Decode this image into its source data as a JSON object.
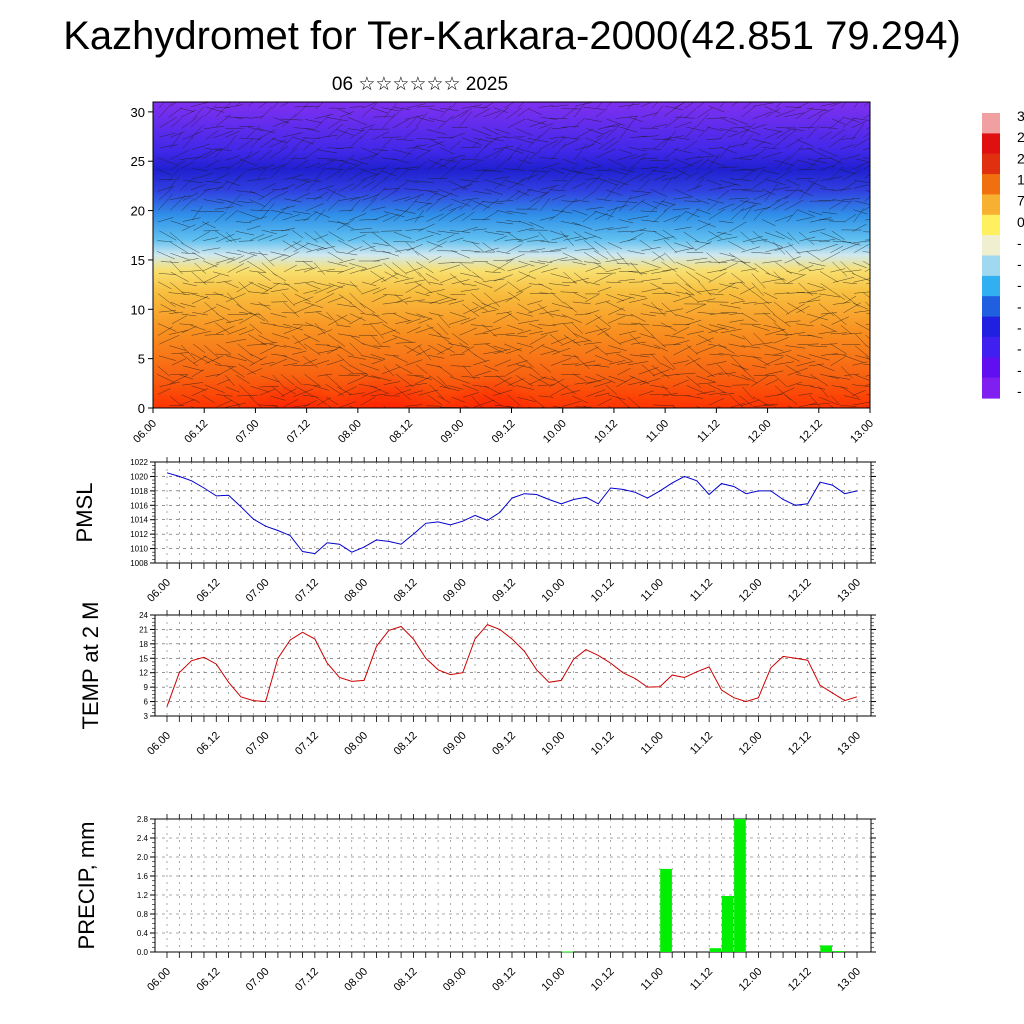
{
  "header": {
    "title": "Kazhydromet for Ter-Karkara-2000(42.851 79.294)",
    "subtitle": "06 ☆☆☆☆☆☆ 2025"
  },
  "time_labels": [
    "06.00",
    "06.12",
    "07.00",
    "07.12",
    "08.00",
    "08.12",
    "09.00",
    "09.12",
    "10.00",
    "10.12",
    "11.00",
    "11.12",
    "12.00",
    "12.12",
    "13.00"
  ],
  "colorbar": {
    "labels": [
      "3",
      "2",
      "2",
      "1",
      "7",
      "0",
      "-",
      "-",
      "-",
      "-",
      "-",
      "-",
      "-",
      "-"
    ],
    "colors": [
      "#f0a0a0",
      "#e01010",
      "#e03010",
      "#f07010",
      "#f8b030",
      "#fff060",
      "#f0f0d0",
      "#a0d8f0",
      "#30b0f0",
      "#2060e0",
      "#2020e0",
      "#4020f0",
      "#6010f0",
      "#8020f0"
    ]
  },
  "chart_data": [
    {
      "type": "heatmap",
      "title": "",
      "x_ticks": [
        "06.00",
        "06.12",
        "07.00",
        "07.12",
        "08.00",
        "08.12",
        "09.00",
        "09.12",
        "10.00",
        "10.12",
        "11.00",
        "11.12",
        "12.00",
        "12.12",
        "13.00"
      ],
      "y_ticks": [
        0,
        5,
        10,
        15,
        20,
        25,
        30
      ],
      "ylim": [
        0,
        31
      ],
      "note_overlay": "wind barbs"
    },
    {
      "type": "line",
      "ylabel": "PMSL",
      "ylim": [
        1008,
        1022
      ],
      "y_ticks": [
        1008,
        1010,
        1012,
        1014,
        1016,
        1018,
        1020,
        1022
      ],
      "x_ticks": [
        "06.00",
        "06.12",
        "07.00",
        "07.12",
        "08.00",
        "08.12",
        "09.00",
        "09.12",
        "10.00",
        "10.12",
        "11.00",
        "11.12",
        "12.00",
        "12.12",
        "13.00"
      ],
      "color": "#0000cc",
      "values": [
        1020.5,
        1020.0,
        1019.4,
        1018.4,
        1017.3,
        1017.4,
        1015.8,
        1014.1,
        1013.1,
        1012.5,
        1011.8,
        1009.6,
        1009.3,
        1010.8,
        1010.6,
        1009.5,
        1010.2,
        1011.2,
        1011.0,
        1010.6,
        1012.0,
        1013.5,
        1013.7,
        1013.3,
        1013.8,
        1014.6,
        1013.9,
        1015.0,
        1017.0,
        1017.6,
        1017.5,
        1016.8,
        1016.2,
        1016.8,
        1017.1,
        1016.2,
        1018.4,
        1018.2,
        1017.8,
        1017.0,
        1018.0,
        1019.1,
        1020.0,
        1019.4,
        1017.5,
        1019.0,
        1018.6,
        1017.6,
        1018.0,
        1018.0,
        1016.8,
        1016.0,
        1016.2,
        1019.2,
        1018.8,
        1017.6,
        1018.0
      ]
    },
    {
      "type": "line",
      "ylabel": "TEMP at 2 M",
      "ylim": [
        3,
        24
      ],
      "y_ticks": [
        3,
        6,
        9,
        12,
        15,
        18,
        21,
        24
      ],
      "x_ticks": [
        "06.00",
        "06.12",
        "07.00",
        "07.12",
        "08.00",
        "08.12",
        "09.00",
        "09.12",
        "10.00",
        "10.12",
        "11.00",
        "11.12",
        "12.00",
        "12.12",
        "13.00"
      ],
      "color": "#cc0000",
      "values": [
        5.0,
        12.0,
        14.5,
        15.2,
        13.8,
        10.0,
        7.0,
        6.2,
        6.0,
        15.0,
        18.8,
        20.4,
        19.0,
        14.0,
        11.0,
        10.2,
        10.4,
        17.5,
        20.8,
        21.6,
        19.0,
        15.0,
        12.6,
        11.6,
        12.0,
        19.0,
        22.0,
        21.0,
        19.0,
        16.5,
        12.6,
        10.0,
        10.4,
        14.8,
        16.8,
        15.6,
        14.0,
        12.0,
        10.8,
        9.0,
        9.1,
        11.5,
        11.0,
        12.2,
        13.2,
        8.4,
        6.8,
        6.0,
        6.8,
        13.0,
        15.4,
        15.0,
        14.6,
        9.4,
        7.8,
        6.2,
        7.0
      ]
    },
    {
      "type": "bar",
      "ylabel": "PRECIP, mm",
      "ylim": [
        0,
        2.8
      ],
      "y_ticks": [
        "0.0",
        "0.4",
        "0.8",
        "1.2",
        "1.6",
        "2.0",
        "2.4",
        "2.8"
      ],
      "x_ticks": [
        "06.00",
        "06.12",
        "07.00",
        "07.12",
        "08.00",
        "08.12",
        "09.00",
        "09.12",
        "10.00",
        "10.12",
        "11.00",
        "11.12",
        "12.00",
        "12.12",
        "13.00"
      ],
      "color": "#00ee00",
      "bars": [
        {
          "t": 32.5,
          "v": 0.01
        },
        {
          "t": 40.5,
          "v": 1.75
        },
        {
          "t": 44.5,
          "v": 0.08
        },
        {
          "t": 45.5,
          "v": 1.18
        },
        {
          "t": 46.5,
          "v": 2.8
        },
        {
          "t": 53.5,
          "v": 0.14
        },
        {
          "t": 54.5,
          "v": 0.02
        }
      ]
    }
  ]
}
